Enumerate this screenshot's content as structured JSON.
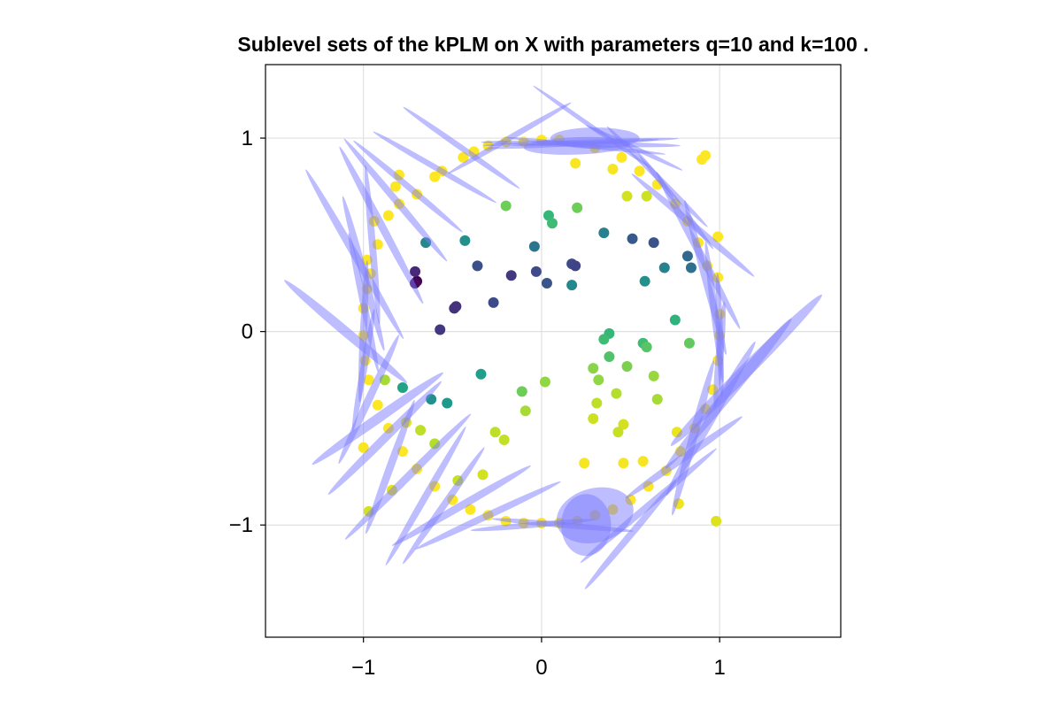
{
  "chart_data": {
    "type": "scatter",
    "title": "Sublevel sets of the kPLM on X with parameters q=10 and k=100 .",
    "xlabel": "",
    "ylabel": "",
    "xlim": [
      -1.55,
      1.68
    ],
    "ylim": [
      -1.58,
      1.38
    ],
    "x_ticks": [
      -1,
      0,
      1
    ],
    "y_ticks": [
      -1,
      0,
      1
    ],
    "x_tick_labels": [
      "−1",
      "0",
      "1"
    ],
    "y_tick_labels": [
      "−1",
      "0",
      "1"
    ],
    "grid": true,
    "colormap": "viridis",
    "ellipse_color": "#7b7bff",
    "points": [
      {
        "x": -0.7,
        "y": 0.26,
        "c": 0.0
      },
      {
        "x": -0.71,
        "y": 0.25,
        "c": 0.02
      },
      {
        "x": -0.71,
        "y": 0.31,
        "c": 0.1
      },
      {
        "x": -0.48,
        "y": 0.13,
        "c": 0.12
      },
      {
        "x": -0.49,
        "y": 0.12,
        "c": 0.13
      },
      {
        "x": -0.57,
        "y": 0.01,
        "c": 0.14
      },
      {
        "x": -0.17,
        "y": 0.29,
        "c": 0.15
      },
      {
        "x": -0.27,
        "y": 0.15,
        "c": 0.2
      },
      {
        "x": -0.36,
        "y": 0.34,
        "c": 0.22
      },
      {
        "x": -0.03,
        "y": 0.31,
        "c": 0.2
      },
      {
        "x": 0.03,
        "y": 0.25,
        "c": 0.23
      },
      {
        "x": 0.17,
        "y": 0.35,
        "c": 0.2
      },
      {
        "x": 0.19,
        "y": 0.34,
        "c": 0.18
      },
      {
        "x": 0.63,
        "y": 0.46,
        "c": 0.23
      },
      {
        "x": 0.51,
        "y": 0.48,
        "c": 0.25
      },
      {
        "x": 0.82,
        "y": 0.39,
        "c": 0.3
      },
      {
        "x": 0.84,
        "y": 0.33,
        "c": 0.33
      },
      {
        "x": -0.04,
        "y": 0.44,
        "c": 0.35
      },
      {
        "x": 0.17,
        "y": 0.24,
        "c": 0.42
      },
      {
        "x": 0.58,
        "y": 0.26,
        "c": 0.45
      },
      {
        "x": 0.69,
        "y": 0.33,
        "c": 0.4
      },
      {
        "x": 0.35,
        "y": 0.51,
        "c": 0.4
      },
      {
        "x": -0.43,
        "y": 0.47,
        "c": 0.45
      },
      {
        "x": -0.65,
        "y": 0.46,
        "c": 0.42
      },
      {
        "x": -0.34,
        "y": -0.22,
        "c": 0.5
      },
      {
        "x": -0.62,
        "y": -0.35,
        "c": 0.45
      },
      {
        "x": -0.53,
        "y": -0.37,
        "c": 0.48
      },
      {
        "x": -0.78,
        "y": -0.29,
        "c": 0.52
      },
      {
        "x": 0.04,
        "y": 0.6,
        "c": 0.6
      },
      {
        "x": 0.06,
        "y": 0.56,
        "c": 0.62
      },
      {
        "x": -0.2,
        "y": 0.65,
        "c": 0.7
      },
      {
        "x": 0.2,
        "y": 0.64,
        "c": 0.7
      },
      {
        "x": 0.38,
        "y": -0.01,
        "c": 0.6
      },
      {
        "x": 0.35,
        "y": -0.04,
        "c": 0.62
      },
      {
        "x": 0.38,
        "y": -0.13,
        "c": 0.65
      },
      {
        "x": 0.57,
        "y": -0.06,
        "c": 0.62
      },
      {
        "x": 0.59,
        "y": -0.08,
        "c": 0.66
      },
      {
        "x": 0.75,
        "y": 0.06,
        "c": 0.58
      },
      {
        "x": 0.83,
        "y": -0.06,
        "c": 0.68
      },
      {
        "x": 0.48,
        "y": -0.18,
        "c": 0.72
      },
      {
        "x": 0.29,
        "y": -0.19,
        "c": 0.74
      },
      {
        "x": 0.32,
        "y": -0.25,
        "c": 0.75
      },
      {
        "x": 0.63,
        "y": -0.23,
        "c": 0.76
      },
      {
        "x": 0.65,
        "y": -0.35,
        "c": 0.78
      },
      {
        "x": 0.42,
        "y": -0.32,
        "c": 0.8
      },
      {
        "x": 0.31,
        "y": -0.37,
        "c": 0.82
      },
      {
        "x": 0.29,
        "y": -0.45,
        "c": 0.85
      },
      {
        "x": 0.46,
        "y": -0.48,
        "c": 0.86
      },
      {
        "x": 0.43,
        "y": -0.52,
        "c": 0.84
      },
      {
        "x": 0.02,
        "y": -0.26,
        "c": 0.75
      },
      {
        "x": -0.11,
        "y": -0.31,
        "c": 0.7
      },
      {
        "x": -0.09,
        "y": -0.41,
        "c": 0.78
      },
      {
        "x": -0.26,
        "y": -0.52,
        "c": 0.82
      },
      {
        "x": -0.21,
        "y": -0.56,
        "c": 0.83
      },
      {
        "x": -0.33,
        "y": -0.74,
        "c": 0.86
      },
      {
        "x": -0.47,
        "y": -0.77,
        "c": 0.84
      },
      {
        "x": -0.6,
        "y": -0.58,
        "c": 0.8
      },
      {
        "x": -0.68,
        "y": -0.51,
        "c": 0.82
      },
      {
        "x": -0.88,
        "y": -0.25,
        "c": 0.78
      },
      {
        "x": -0.76,
        "y": -0.47,
        "c": 0.9
      },
      {
        "x": -0.97,
        "y": -0.93,
        "c": 0.86
      },
      {
        "x": -0.84,
        "y": -0.82,
        "c": 0.9
      },
      {
        "x": 0.59,
        "y": 0.7,
        "c": 0.85
      },
      {
        "x": 0.48,
        "y": 0.7,
        "c": 0.86
      },
      {
        "x": 0.76,
        "y": -0.52,
        "c": 0.92
      },
      {
        "x": 0.77,
        "y": -0.89,
        "c": 0.94
      },
      {
        "x": 0.98,
        "y": -0.98,
        "c": 0.88
      },
      {
        "x": 0.24,
        "y": -0.68,
        "c": 0.96
      },
      {
        "x": 0.57,
        "y": -0.67,
        "c": 0.97
      },
      {
        "x": 0.46,
        "y": -0.68,
        "c": 0.96
      },
      {
        "x": 0.19,
        "y": 0.87,
        "c": 0.98
      },
      {
        "x": 0.4,
        "y": 0.84,
        "c": 0.97
      },
      {
        "x": -1.0,
        "y": -0.6,
        "c": 0.98
      },
      {
        "x": 0.92,
        "y": 0.91,
        "c": 0.99
      },
      {
        "x": 0.9,
        "y": 0.89,
        "c": 1.0
      },
      {
        "x": -0.94,
        "y": 0.57,
        "c": 1.0
      },
      {
        "x": -0.82,
        "y": 0.75,
        "c": 1.0
      },
      {
        "x": -0.8,
        "y": 0.81,
        "c": 1.0
      },
      {
        "x": -0.7,
        "y": 0.71,
        "c": 1.0
      },
      {
        "x": -0.6,
        "y": 0.8,
        "c": 1.0
      },
      {
        "x": -0.56,
        "y": 0.83,
        "c": 1.0
      },
      {
        "x": -0.44,
        "y": 0.9,
        "c": 1.0
      },
      {
        "x": -0.38,
        "y": 0.93,
        "c": 1.0
      },
      {
        "x": -0.3,
        "y": 0.96,
        "c": 1.0
      },
      {
        "x": -0.2,
        "y": 0.98,
        "c": 1.0
      },
      {
        "x": -0.1,
        "y": 0.98,
        "c": 1.0
      },
      {
        "x": 0.0,
        "y": 0.99,
        "c": 1.0
      },
      {
        "x": 0.1,
        "y": 0.99,
        "c": 1.0
      },
      {
        "x": 0.3,
        "y": 0.95,
        "c": 1.0
      },
      {
        "x": 0.45,
        "y": 0.9,
        "c": 1.0
      },
      {
        "x": 0.55,
        "y": 0.83,
        "c": 1.0
      },
      {
        "x": 0.65,
        "y": 0.76,
        "c": 1.0
      },
      {
        "x": 0.75,
        "y": 0.66,
        "c": 1.0
      },
      {
        "x": 0.82,
        "y": 0.57,
        "c": 1.0
      },
      {
        "x": 0.88,
        "y": 0.46,
        "c": 1.0
      },
      {
        "x": 0.93,
        "y": 0.34,
        "c": 1.0
      },
      {
        "x": 0.99,
        "y": 0.28,
        "c": 1.0
      },
      {
        "x": 0.99,
        "y": 0.49,
        "c": 1.0
      },
      {
        "x": 1.0,
        "y": 0.09,
        "c": 1.0
      },
      {
        "x": 1.0,
        "y": -0.02,
        "c": 1.0
      },
      {
        "x": 0.99,
        "y": -0.15,
        "c": 1.0
      },
      {
        "x": 0.96,
        "y": -0.3,
        "c": 1.0
      },
      {
        "x": 0.92,
        "y": -0.4,
        "c": 1.0
      },
      {
        "x": 0.86,
        "y": -0.5,
        "c": 1.0
      },
      {
        "x": 0.78,
        "y": -0.62,
        "c": 1.0
      },
      {
        "x": 0.7,
        "y": -0.72,
        "c": 1.0
      },
      {
        "x": 0.6,
        "y": -0.8,
        "c": 1.0
      },
      {
        "x": 0.5,
        "y": -0.87,
        "c": 1.0
      },
      {
        "x": 0.4,
        "y": -0.92,
        "c": 1.0
      },
      {
        "x": 0.3,
        "y": -0.95,
        "c": 1.0
      },
      {
        "x": 0.2,
        "y": -0.98,
        "c": 1.0
      },
      {
        "x": 0.1,
        "y": -0.99,
        "c": 1.0
      },
      {
        "x": 0.0,
        "y": -0.99,
        "c": 1.0
      },
      {
        "x": -0.1,
        "y": -0.99,
        "c": 1.0
      },
      {
        "x": -0.2,
        "y": -0.98,
        "c": 1.0
      },
      {
        "x": -0.3,
        "y": -0.95,
        "c": 1.0
      },
      {
        "x": -0.4,
        "y": -0.92,
        "c": 1.0
      },
      {
        "x": -0.5,
        "y": -0.87,
        "c": 1.0
      },
      {
        "x": -0.6,
        "y": -0.8,
        "c": 1.0
      },
      {
        "x": -0.7,
        "y": -0.71,
        "c": 1.0
      },
      {
        "x": -0.78,
        "y": -0.62,
        "c": 1.0
      },
      {
        "x": -0.86,
        "y": -0.5,
        "c": 1.0
      },
      {
        "x": -0.92,
        "y": -0.38,
        "c": 1.0
      },
      {
        "x": -0.97,
        "y": -0.25,
        "c": 1.0
      },
      {
        "x": -0.99,
        "y": -0.15,
        "c": 1.0
      },
      {
        "x": -1.0,
        "y": -0.02,
        "c": 1.0
      },
      {
        "x": -1.0,
        "y": 0.12,
        "c": 1.0
      },
      {
        "x": -0.98,
        "y": 0.22,
        "c": 1.0
      },
      {
        "x": -0.96,
        "y": 0.3,
        "c": 1.0
      },
      {
        "x": -0.98,
        "y": 0.37,
        "c": 1.0
      },
      {
        "x": -0.92,
        "y": 0.45,
        "c": 1.0
      },
      {
        "x": -0.86,
        "y": 0.6,
        "c": 1.0
      },
      {
        "x": -0.8,
        "y": 0.66,
        "c": 1.0
      }
    ],
    "ellipses": [
      {
        "cx": 0.22,
        "cy": 0.97,
        "rx": 0.56,
        "ry": 0.015,
        "angle": -1
      },
      {
        "cx": 0.18,
        "cy": 0.97,
        "rx": 0.48,
        "ry": 0.012,
        "angle": 3
      },
      {
        "cx": 0.25,
        "cy": 0.96,
        "rx": 0.45,
        "ry": 0.012,
        "angle": -6
      },
      {
        "cx": 0.22,
        "cy": 0.98,
        "rx": 0.55,
        "ry": 0.012,
        "angle": 2
      },
      {
        "cx": 0.2,
        "cy": 0.96,
        "rx": 0.3,
        "ry": 0.045,
        "angle": 2
      },
      {
        "cx": 0.3,
        "cy": 1.0,
        "rx": 0.25,
        "ry": 0.055,
        "angle": 0
      },
      {
        "cx": 0.28,
        "cy": 1.06,
        "rx": 0.4,
        "ry": 0.012,
        "angle": -35
      },
      {
        "cx": -0.18,
        "cy": 1.0,
        "rx": 0.4,
        "ry": 0.015,
        "angle": 30
      },
      {
        "cx": 0.52,
        "cy": 0.95,
        "rx": 0.3,
        "ry": 0.012,
        "angle": -25
      },
      {
        "cx": 0.65,
        "cy": 0.8,
        "rx": 0.4,
        "ry": 0.015,
        "angle": -45
      },
      {
        "cx": 0.75,
        "cy": 0.68,
        "rx": 0.35,
        "ry": 0.015,
        "angle": -52
      },
      {
        "cx": 0.85,
        "cy": 0.55,
        "rx": 0.45,
        "ry": 0.018,
        "angle": -40
      },
      {
        "cx": 0.88,
        "cy": 0.42,
        "rx": 0.5,
        "ry": 0.02,
        "angle": -62
      },
      {
        "cx": 0.92,
        "cy": 0.28,
        "rx": 0.45,
        "ry": 0.02,
        "angle": -75
      },
      {
        "cx": 0.97,
        "cy": 0.1,
        "rx": 0.4,
        "ry": 0.018,
        "angle": -83
      },
      {
        "cx": 1.0,
        "cy": -0.02,
        "rx": 0.35,
        "ry": 0.018,
        "angle": -88
      },
      {
        "cx": 1.0,
        "cy": -0.12,
        "rx": 0.3,
        "ry": 0.02,
        "angle": 85
      },
      {
        "cx": 1.15,
        "cy": -0.2,
        "rx": 0.6,
        "ry": 0.035,
        "angle": 45
      },
      {
        "cx": 1.05,
        "cy": -0.32,
        "rx": 0.55,
        "ry": 0.03,
        "angle": 50
      },
      {
        "cx": 0.95,
        "cy": -0.45,
        "rx": 0.5,
        "ry": 0.025,
        "angle": 60
      },
      {
        "cx": 0.85,
        "cy": -0.55,
        "rx": 0.45,
        "ry": 0.022,
        "angle": 75
      },
      {
        "cx": 0.8,
        "cy": -0.65,
        "rx": 0.4,
        "ry": 0.02,
        "angle": 35
      },
      {
        "cx": 0.6,
        "cy": -0.9,
        "rx": 0.5,
        "ry": 0.018,
        "angle": 40
      },
      {
        "cx": 0.5,
        "cy": -1.05,
        "rx": 0.4,
        "ry": 0.018,
        "angle": 50
      },
      {
        "cx": 0.3,
        "cy": -0.95,
        "rx": 0.22,
        "ry": 0.14,
        "angle": 15
      },
      {
        "cx": 0.25,
        "cy": -1.0,
        "rx": 0.14,
        "ry": 0.16,
        "angle": 0
      },
      {
        "cx": 0.12,
        "cy": -1.0,
        "rx": 0.4,
        "ry": 0.015,
        "angle": -5
      },
      {
        "cx": -0.05,
        "cy": -1.0,
        "rx": 0.35,
        "ry": 0.015,
        "angle": 5
      },
      {
        "cx": -0.3,
        "cy": -0.95,
        "rx": 0.45,
        "ry": 0.018,
        "angle": 25
      },
      {
        "cx": -0.45,
        "cy": -0.9,
        "rx": 0.45,
        "ry": 0.02,
        "angle": 30
      },
      {
        "cx": -0.55,
        "cy": -0.9,
        "rx": 0.4,
        "ry": 0.018,
        "angle": 55
      },
      {
        "cx": -0.65,
        "cy": -0.85,
        "rx": 0.45,
        "ry": 0.018,
        "angle": 60
      },
      {
        "cx": -0.75,
        "cy": -0.75,
        "rx": 0.5,
        "ry": 0.02,
        "angle": 45
      },
      {
        "cx": -0.85,
        "cy": -0.7,
        "rx": 0.4,
        "ry": 0.02,
        "angle": 70
      },
      {
        "cx": -0.88,
        "cy": -0.55,
        "rx": 0.45,
        "ry": 0.022,
        "angle": 45
      },
      {
        "cx": -0.92,
        "cy": -0.45,
        "rx": 0.45,
        "ry": 0.025,
        "angle": 35
      },
      {
        "cx": -0.97,
        "cy": -0.35,
        "rx": 0.4,
        "ry": 0.02,
        "angle": 65
      },
      {
        "cx": -1.0,
        "cy": -0.2,
        "rx": 0.35,
        "ry": 0.018,
        "angle": 80
      },
      {
        "cx": -1.0,
        "cy": 0.0,
        "rx": 0.4,
        "ry": 0.018,
        "angle": 87
      },
      {
        "cx": -1.1,
        "cy": 0.0,
        "rx": 0.45,
        "ry": 0.025,
        "angle": -40
      },
      {
        "cx": -1.0,
        "cy": 0.15,
        "rx": 0.4,
        "ry": 0.018,
        "angle": -78
      },
      {
        "cx": -1.0,
        "cy": 0.3,
        "rx": 0.45,
        "ry": 0.02,
        "angle": -75
      },
      {
        "cx": -1.05,
        "cy": 0.4,
        "rx": 0.55,
        "ry": 0.02,
        "angle": -60
      },
      {
        "cx": -0.95,
        "cy": 0.45,
        "rx": 0.45,
        "ry": 0.018,
        "angle": -85
      },
      {
        "cx": -0.9,
        "cy": 0.55,
        "rx": 0.5,
        "ry": 0.02,
        "angle": -62
      },
      {
        "cx": -0.82,
        "cy": 0.68,
        "rx": 0.45,
        "ry": 0.018,
        "angle": -50
      },
      {
        "cx": -0.75,
        "cy": 0.75,
        "rx": 0.4,
        "ry": 0.016,
        "angle": -40
      },
      {
        "cx": -0.6,
        "cy": 0.85,
        "rx": 0.4,
        "ry": 0.015,
        "angle": -30
      },
      {
        "cx": -0.45,
        "cy": 0.95,
        "rx": 0.4,
        "ry": 0.015,
        "angle": -35
      }
    ]
  }
}
